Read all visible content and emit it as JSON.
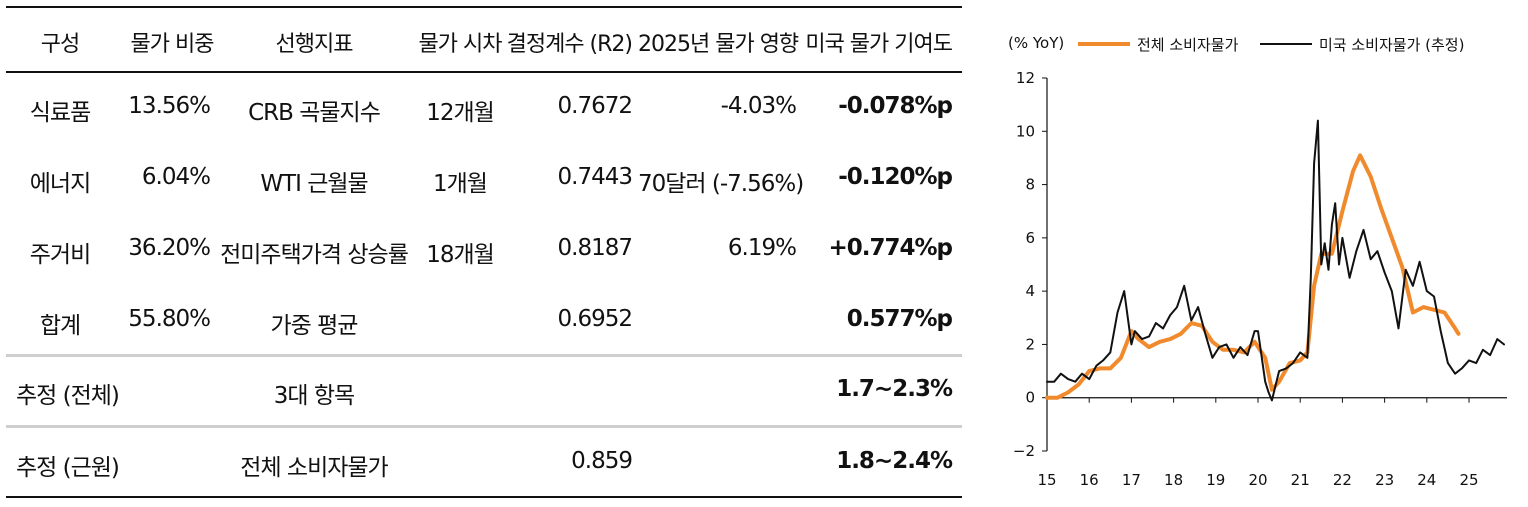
{
  "table": {
    "headers": [
      "구성",
      "물가 비중",
      "선행지표",
      "물가 시차",
      "결정계수 (R2)",
      "2025년 물가 영향",
      "미국 물가 기여도"
    ],
    "rows": [
      [
        "식료품",
        "13.56%",
        "CRB 곡물지수",
        "12개월",
        "0.7672",
        "-4.03%",
        "-0.078%p"
      ],
      [
        "에너지",
        "6.04%",
        "WTI 근월물",
        "1개월",
        "0.7443",
        "70달러 (-7.56%)",
        "-0.120%p"
      ],
      [
        "주거비",
        "36.20%",
        "전미주택가격 상승률",
        "18개월",
        "0.8187",
        "6.19%",
        "+0.774%p"
      ],
      [
        "합계",
        "55.80%",
        "가중 평균",
        "",
        "0.6952",
        "",
        "0.577%p"
      ]
    ],
    "est_rows": [
      [
        "추정 (전체)",
        "3대 항목",
        "",
        "1.7~2.3%"
      ],
      [
        "추정 (근원)",
        "전체 소비자물가",
        "0.859",
        "1.8~2.4%"
      ]
    ]
  },
  "chart_data": {
    "type": "line",
    "ylabel": "(% YoY)",
    "ylim": [
      -2,
      12
    ],
    "yticks": [
      -2,
      0,
      2,
      4,
      6,
      8,
      10,
      12
    ],
    "xlim": [
      15,
      25.9
    ],
    "xticks": [
      15,
      16,
      17,
      18,
      19,
      20,
      21,
      22,
      23,
      24,
      25
    ],
    "legend_position": "top",
    "series": [
      {
        "name": "전체 소비자물가",
        "color": "#f08a2c",
        "x": [
          15.0,
          15.25,
          15.5,
          15.75,
          16.0,
          16.25,
          16.5,
          16.75,
          17.0,
          17.17,
          17.42,
          17.67,
          17.92,
          18.17,
          18.42,
          18.67,
          18.92,
          19.17,
          19.42,
          19.67,
          19.92,
          20.17,
          20.33,
          20.5,
          20.75,
          21.0,
          21.17,
          21.33,
          21.5,
          21.75,
          22.0,
          22.25,
          22.42,
          22.67,
          22.92,
          23.17,
          23.42,
          23.67,
          23.92,
          24.17,
          24.42,
          24.67,
          24.75
        ],
        "y": [
          0.0,
          0.0,
          0.2,
          0.5,
          1.0,
          1.1,
          1.1,
          1.5,
          2.5,
          2.2,
          1.9,
          2.1,
          2.2,
          2.4,
          2.8,
          2.7,
          2.1,
          1.8,
          1.8,
          1.7,
          2.1,
          1.5,
          0.3,
          0.6,
          1.3,
          1.4,
          1.7,
          4.2,
          5.4,
          5.4,
          7.0,
          8.5,
          9.1,
          8.3,
          7.1,
          6.0,
          4.9,
          3.2,
          3.4,
          3.3,
          3.2,
          2.6,
          2.4
        ]
      },
      {
        "name": "미국 소비자물가 (추정)",
        "color": "#111111",
        "x": [
          15.0,
          15.17,
          15.33,
          15.5,
          15.67,
          15.83,
          16.0,
          16.17,
          16.33,
          16.5,
          16.67,
          16.83,
          17.0,
          17.08,
          17.25,
          17.42,
          17.58,
          17.75,
          17.92,
          18.08,
          18.25,
          18.42,
          18.58,
          18.75,
          18.92,
          19.08,
          19.25,
          19.42,
          19.58,
          19.75,
          19.92,
          20.0,
          20.17,
          20.25,
          20.33,
          20.5,
          20.67,
          20.83,
          21.0,
          21.17,
          21.25,
          21.33,
          21.42,
          21.5,
          21.58,
          21.67,
          21.75,
          21.83,
          21.92,
          22.0,
          22.17,
          22.33,
          22.5,
          22.67,
          22.83,
          23.0,
          23.17,
          23.33,
          23.5,
          23.67,
          23.83,
          24.0,
          24.17,
          24.33,
          24.5,
          24.67,
          24.83,
          25.0,
          25.17,
          25.33,
          25.5,
          25.67,
          25.83
        ],
        "y": [
          0.6,
          0.6,
          0.9,
          0.7,
          0.6,
          0.9,
          0.7,
          1.2,
          1.4,
          1.7,
          3.2,
          4.0,
          2.0,
          2.5,
          2.2,
          2.3,
          2.8,
          2.6,
          3.1,
          3.4,
          4.2,
          2.9,
          3.4,
          2.4,
          1.5,
          1.9,
          2.0,
          1.5,
          1.9,
          1.6,
          2.5,
          2.5,
          0.6,
          0.2,
          -0.1,
          1.0,
          1.1,
          1.3,
          1.7,
          1.5,
          4.5,
          8.8,
          10.4,
          5.0,
          5.8,
          4.8,
          6.5,
          7.3,
          5.0,
          6.0,
          4.5,
          5.5,
          6.3,
          5.2,
          5.5,
          4.7,
          4.0,
          2.6,
          4.8,
          4.2,
          5.1,
          4.0,
          3.8,
          2.5,
          1.3,
          0.9,
          1.1,
          1.4,
          1.3,
          1.8,
          1.6,
          2.2,
          2.0
        ]
      }
    ]
  }
}
